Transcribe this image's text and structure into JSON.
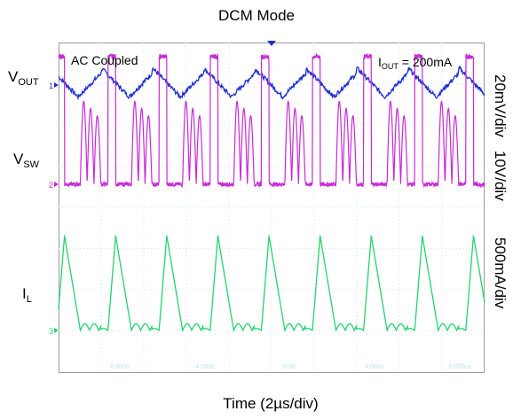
{
  "chart_data": {
    "type": "line",
    "title": "DCM Mode",
    "xlabel": "Time (2µs/div)",
    "annotation_coupling": "AC Coupled",
    "annotation_load": {
      "main": "I",
      "sub": "OUT",
      "rest": " = 200mA"
    },
    "grid": true,
    "x_unit": "µs",
    "xlim": [
      -10,
      10
    ],
    "x_tick_labels": [
      "-6.000u",
      "-4.000u",
      "0.00",
      "4.000u",
      "6.000us"
    ],
    "switching_period_us": 2.4,
    "series": [
      {
        "key": "vout",
        "label_main": "V",
        "label_sub": "OUT",
        "scale": "20mV/div",
        "color": "#1d2fd0",
        "waveform": "ripple",
        "ripple_mV_pp": 16
      },
      {
        "key": "vsw",
        "label_main": "V",
        "label_sub": "SW",
        "scale": "10V/div",
        "color": "#c82ad8",
        "waveform": "switch_node",
        "on_level_V": 31,
        "ringing_peak_V": 21,
        "ringing_cycles": 3
      },
      {
        "key": "il",
        "label_main": "I",
        "label_sub": "L",
        "scale": "500mA/div",
        "color": "#23d46e",
        "waveform": "triangular_dcm",
        "peak_mA": 1150,
        "ringing_mA": 80
      }
    ],
    "channel_markers": [
      "1",
      "2",
      "3"
    ]
  }
}
